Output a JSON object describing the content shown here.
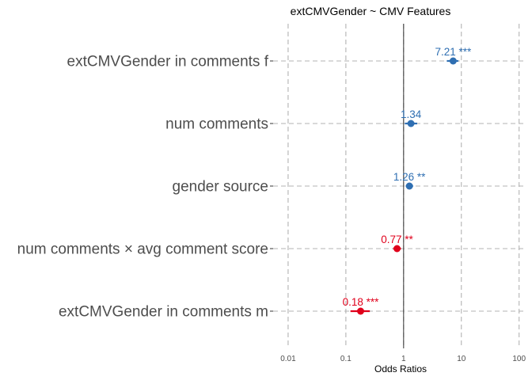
{
  "chart_data": {
    "type": "forest",
    "title": "extCMVGender  ~  CMV Features",
    "xlabel": "Odds Ratios",
    "ylabel": "",
    "x_scale": "log10",
    "xlim": [
      0.0055,
      130
    ],
    "ticks": [
      {
        "value": 0.01,
        "label": "0.01"
      },
      {
        "value": 0.1,
        "label": "0.1"
      },
      {
        "value": 1,
        "label": "1"
      },
      {
        "value": 10,
        "label": "10"
      },
      {
        "value": 100,
        "label": "100"
      }
    ],
    "reference_line": 1,
    "grid": true,
    "colors": {
      "positive": "#2f6fb2",
      "negative": "#e0001b",
      "grid": "#b3b3b3",
      "text": "#4d4d4d"
    },
    "terms": [
      {
        "term": "extCMVGender in comments f",
        "estimate": 7.21,
        "ci": [
          5.6,
          8.9
        ],
        "label": "7.21 ***",
        "direction": "positive"
      },
      {
        "term": "num comments",
        "estimate": 1.34,
        "ci": [
          1.05,
          1.72
        ],
        "label": "1.34",
        "direction": "positive"
      },
      {
        "term": "gender source",
        "estimate": 1.26,
        "ci": [
          1.09,
          1.46
        ],
        "label": "1.26 **",
        "direction": "positive"
      },
      {
        "term": "num comments × avg comment score",
        "estimate": 0.77,
        "ci": [
          0.66,
          0.9
        ],
        "label": "0.77 **",
        "direction": "negative"
      },
      {
        "term": "extCMVGender in comments m",
        "estimate": 0.18,
        "ci": [
          0.12,
          0.26
        ],
        "label": "0.18 ***",
        "direction": "negative"
      }
    ]
  }
}
